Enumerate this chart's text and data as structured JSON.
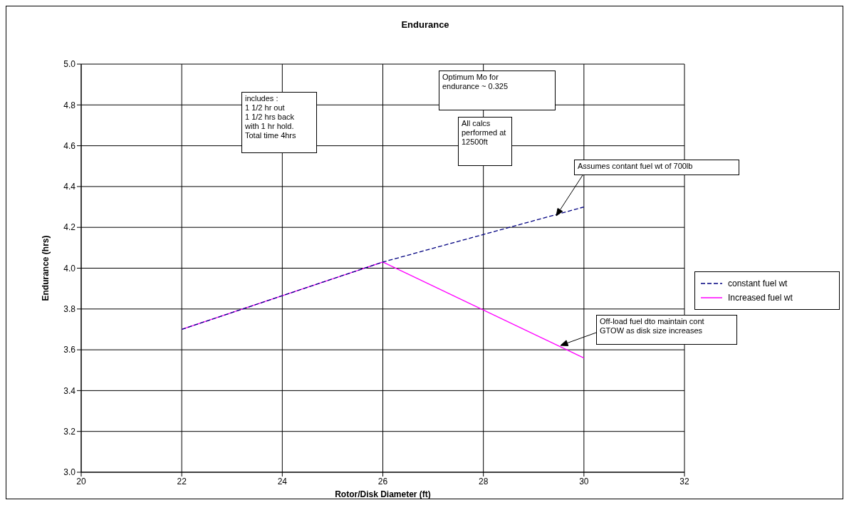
{
  "chart_data": {
    "type": "line",
    "title": "Endurance",
    "xlabel": "Rotor/Disk Diameter (ft)",
    "ylabel": "Endurance (hrs)",
    "x": [
      22,
      26,
      30
    ],
    "series": [
      {
        "name": "constant fuel wt",
        "color": "#000080",
        "line_style": "dashed",
        "values": [
          3.7,
          4.03,
          4.3
        ]
      },
      {
        "name": "Increased fuel wt",
        "color": "#ff00ff",
        "line_style": "solid",
        "values": [
          3.7,
          4.03,
          3.56
        ]
      }
    ],
    "xlim": [
      20,
      32
    ],
    "xticks": [
      20,
      22,
      24,
      26,
      28,
      30,
      32
    ],
    "ylim": [
      3.0,
      5.0
    ],
    "yticks": [
      {
        "value": 3.0,
        "label": "3.0"
      },
      {
        "value": 3.2,
        "label": "3.2"
      },
      {
        "value": 3.4,
        "label": "3.4"
      },
      {
        "value": 3.6,
        "label": "3.6"
      },
      {
        "value": 3.8,
        "label": "3.8"
      },
      {
        "value": 4.0,
        "label": "4.0"
      },
      {
        "value": 4.2,
        "label": "4.2"
      },
      {
        "value": 4.4,
        "label": "4.4"
      },
      {
        "value": 4.6,
        "label": "4.6"
      },
      {
        "value": 4.8,
        "label": "4.8"
      },
      {
        "value": 5.0,
        "label": "5.0"
      }
    ],
    "grid": true,
    "legend": "right",
    "marker": "none",
    "annotations": [
      "includes :\n1 1/2 hr out\n1 1/2 hrs back\nwith 1 hr hold.\nTotal time 4hrs",
      "Optimum Mo for\nendurance ~ 0.325",
      "All calcs\nperformed at\n12500ft",
      "Assumes contant fuel wt of 700lb",
      "Off-load fuel dto maintain cont\nGTOW as disk size increases"
    ]
  }
}
